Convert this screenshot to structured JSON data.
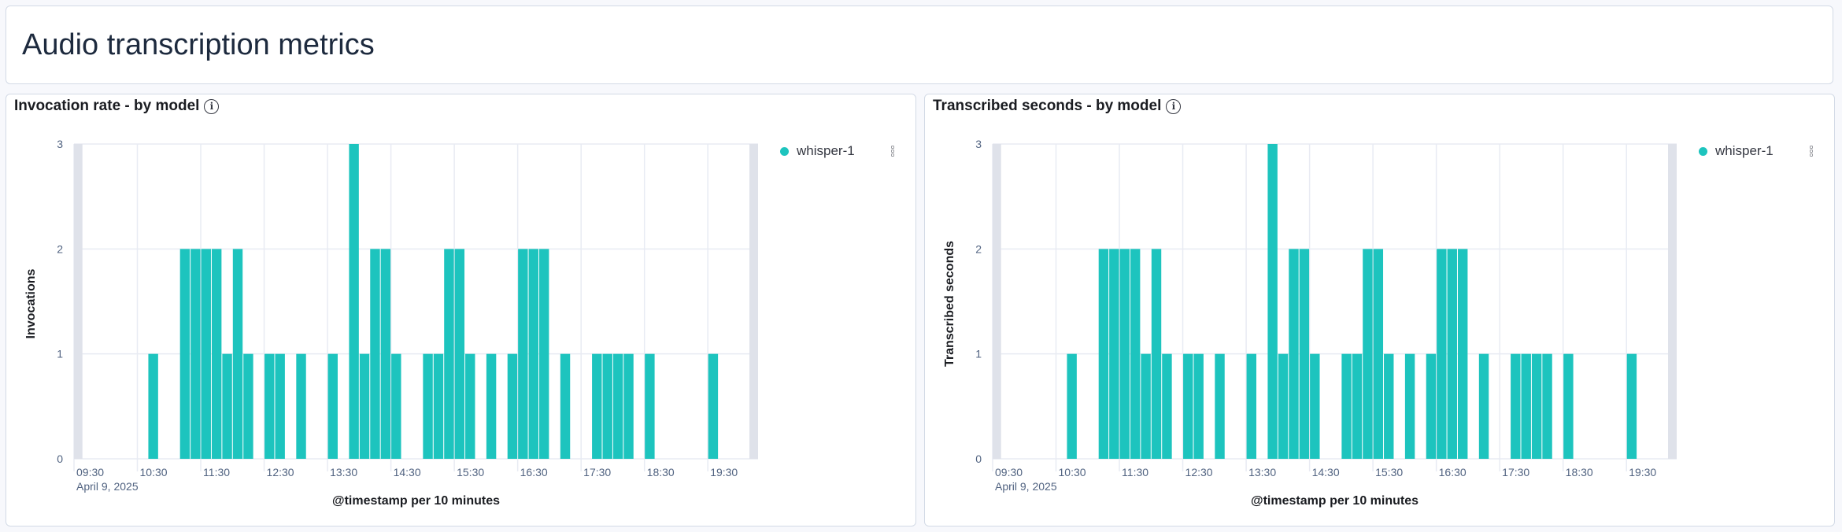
{
  "header": {
    "title": "Audio transcription metrics"
  },
  "colors": {
    "bar": "#1dc4be",
    "grid": "#e8ebf3",
    "band": "#dfe2ea"
  },
  "chart_data": [
    {
      "type": "bar",
      "title": "Invocation rate - by model",
      "xlabel": "@timestamp per 10 minutes",
      "ylabel": "Invocations",
      "ylim": [
        0,
        3
      ],
      "yticks": [
        "0",
        "1",
        "2",
        "3"
      ],
      "xticks": [
        "09:30",
        "10:30",
        "11:30",
        "12:30",
        "13:30",
        "14:30",
        "15:30",
        "16:30",
        "17:30",
        "18:30",
        "19:30"
      ],
      "date_label": "April 9, 2025",
      "legend": [
        "whisper-1"
      ],
      "series": [
        {
          "name": "whisper-1",
          "x": [
            "10:40",
            "11:10",
            "11:20",
            "11:30",
            "11:40",
            "11:50",
            "12:00",
            "12:10",
            "12:30",
            "12:40",
            "13:00",
            "13:30",
            "13:50",
            "14:00",
            "14:10",
            "14:20",
            "14:30",
            "15:00",
            "15:10",
            "15:20",
            "15:30",
            "15:40",
            "16:00",
            "16:20",
            "16:30",
            "16:40",
            "16:50",
            "17:10",
            "17:40",
            "17:50",
            "18:00",
            "18:10",
            "18:30",
            "19:30"
          ],
          "values": [
            1,
            2,
            2,
            2,
            2,
            1,
            2,
            1,
            1,
            1,
            1,
            1,
            3,
            1,
            2,
            2,
            1,
            1,
            1,
            2,
            2,
            1,
            1,
            1,
            2,
            2,
            2,
            1,
            1,
            1,
            1,
            1,
            1,
            1
          ]
        }
      ]
    },
    {
      "type": "bar",
      "title": "Transcribed seconds - by model",
      "xlabel": "@timestamp per 10 minutes",
      "ylabel": "Transcribed seconds",
      "ylim": [
        0,
        3
      ],
      "yticks": [
        "0",
        "1",
        "2",
        "3"
      ],
      "xticks": [
        "09:30",
        "10:30",
        "11:30",
        "12:30",
        "13:30",
        "14:30",
        "15:30",
        "16:30",
        "17:30",
        "18:30",
        "19:30"
      ],
      "date_label": "April 9, 2025",
      "legend": [
        "whisper-1"
      ],
      "series": [
        {
          "name": "whisper-1",
          "x": [
            "10:40",
            "11:10",
            "11:20",
            "11:30",
            "11:40",
            "11:50",
            "12:00",
            "12:10",
            "12:30",
            "12:40",
            "13:00",
            "13:30",
            "13:50",
            "14:00",
            "14:10",
            "14:20",
            "14:30",
            "15:00",
            "15:10",
            "15:20",
            "15:30",
            "15:40",
            "16:00",
            "16:20",
            "16:30",
            "16:40",
            "16:50",
            "17:10",
            "17:40",
            "17:50",
            "18:00",
            "18:10",
            "18:30",
            "19:30"
          ],
          "values": [
            1,
            2,
            2,
            2,
            2,
            1,
            2,
            1,
            1,
            1,
            1,
            1,
            3,
            1,
            2,
            2,
            1,
            1,
            1,
            2,
            2,
            1,
            1,
            1,
            2,
            2,
            2,
            1,
            1,
            1,
            1,
            1,
            1,
            1
          ]
        }
      ]
    }
  ]
}
